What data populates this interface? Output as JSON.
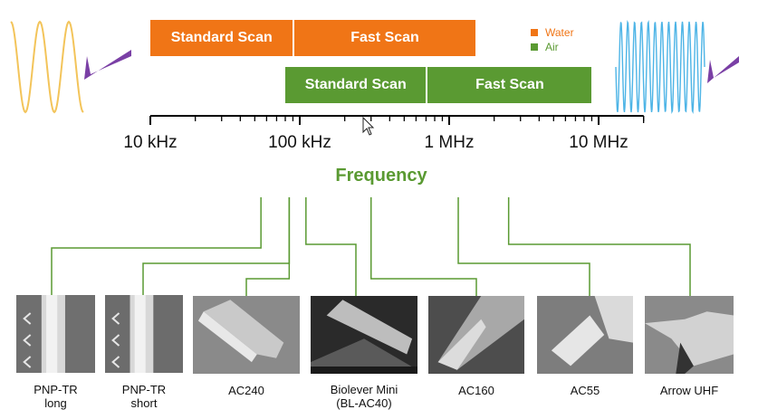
{
  "colors": {
    "water": "#F07516",
    "air": "#5A9A32",
    "wave_left": "#F3C45A",
    "wave_right": "#4DB4E6",
    "cantilever": "#7A3FA5",
    "axis": "#000000",
    "connector": "#5A9A32"
  },
  "scan_bars": {
    "water": [
      {
        "label": "Standard Scan",
        "start_hz": 10000,
        "end_hz": 90000
      },
      {
        "label": "Fast Scan",
        "start_hz": 92000,
        "end_hz": 1500000
      }
    ],
    "air": [
      {
        "label": "Standard Scan",
        "start_hz": 80000,
        "end_hz": 700000
      },
      {
        "label": "Fast Scan",
        "start_hz": 720000,
        "end_hz": 9000000
      }
    ]
  },
  "legend": {
    "water": "Water",
    "air": "Air"
  },
  "axis": {
    "title": "Frequency",
    "scale": "log",
    "range_hz": [
      10000,
      20000000
    ],
    "ticks": [
      {
        "label": "10 kHz",
        "hz": 10000
      },
      {
        "label": "100 kHz",
        "hz": 100000
      },
      {
        "label": "1 MHz",
        "hz": 1000000
      },
      {
        "label": "10 MHz",
        "hz": 10000000
      }
    ]
  },
  "cantilevers": [
    {
      "name": "PNP-TR\nlong",
      "freq_hz": 55000,
      "icon": "sem-pnp-tr-long"
    },
    {
      "name": "PNP-TR\nshort",
      "freq_hz": 85000,
      "icon": "sem-pnp-tr-short"
    },
    {
      "name": "AC240",
      "freq_hz": 85000,
      "icon": "sem-ac240"
    },
    {
      "name": "Biolever Mini\n(BL-AC40)",
      "freq_hz": 110000,
      "icon": "sem-biolever-mini"
    },
    {
      "name": "AC160",
      "freq_hz": 300000,
      "icon": "sem-ac160"
    },
    {
      "name": "AC55",
      "freq_hz": 1150000,
      "icon": "sem-ac55"
    },
    {
      "name": "Arrow UHF",
      "freq_hz": 2500000,
      "icon": "sem-arrow-uhf"
    }
  ]
}
